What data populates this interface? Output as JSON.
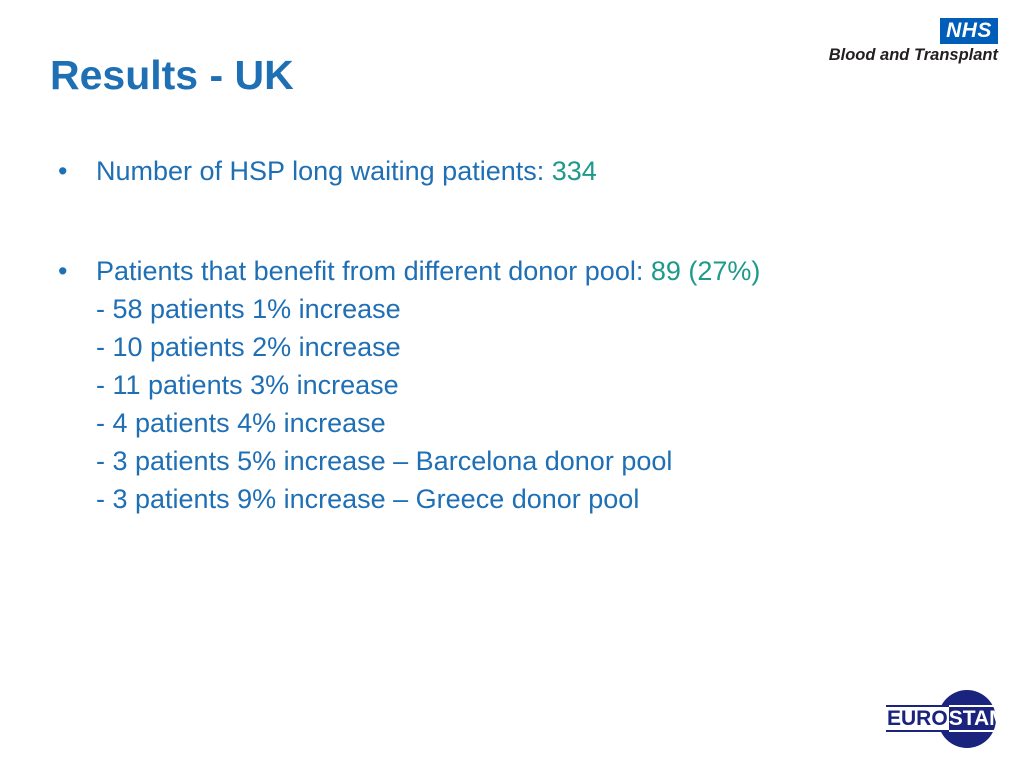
{
  "slide": {
    "title": "Results - UK"
  },
  "logos": {
    "nhs_mark": "NHS",
    "nhs_subtitle": "Blood and Transplant",
    "eurostam_prefix": "EURO",
    "eurostam_suffix": "STAM"
  },
  "bullets": [
    {
      "text": "Number of HSP long waiting patients:",
      "value": "334"
    },
    {
      "text": "Patients that benefit from different donor pool:",
      "value": "89 (27%)",
      "sub_items": [
        "- 58 patients 1% increase",
        "- 10 patients 2% increase",
        "- 11 patients 3% increase",
        "- 4 patients 4% increase",
        "- 3 patients 5% increase – Barcelona donor pool",
        "- 3 patients 9% increase – Greece donor pool"
      ]
    }
  ],
  "colors": {
    "title": "#1f6fb5",
    "body_text": "#1f6fb5",
    "highlight_value": "#1d9a8a",
    "nhs_blue": "#005eb8",
    "eurostam_navy": "#1a237e"
  }
}
